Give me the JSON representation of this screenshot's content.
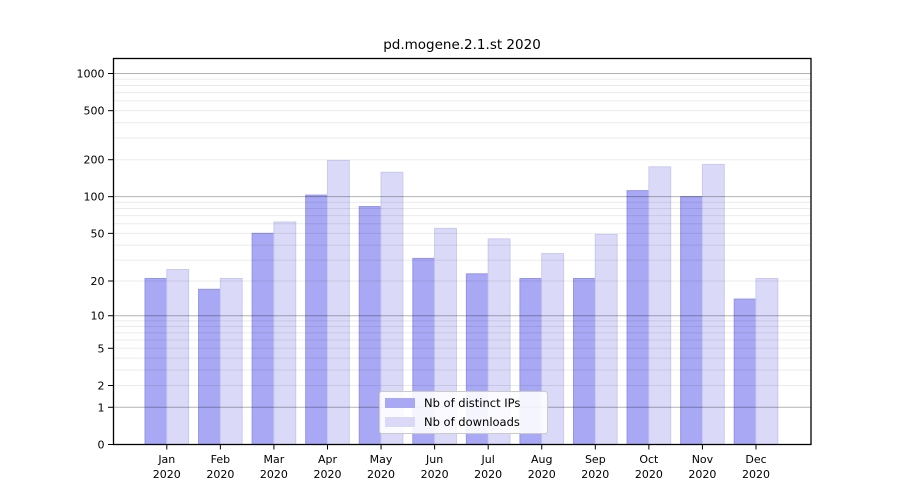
{
  "chart_data": {
    "type": "bar",
    "title": "pd.mogene.2.1.st 2020",
    "categories": [
      "Jan",
      "Feb",
      "Mar",
      "Apr",
      "May",
      "Jun",
      "Jul",
      "Aug",
      "Sep",
      "Oct",
      "Nov",
      "Dec"
    ],
    "category_year": "2020",
    "xlabel": "",
    "ylabel": "",
    "y_scale": "log10(value+1)",
    "ylim": [
      0,
      1320
    ],
    "yticks": [
      0,
      1,
      2,
      5,
      10,
      20,
      50,
      100,
      200,
      500,
      1000
    ],
    "grid": {
      "major": [
        1,
        10,
        100,
        1000
      ],
      "minor": [
        2,
        3,
        4,
        5,
        6,
        7,
        8,
        9,
        20,
        30,
        40,
        50,
        60,
        70,
        80,
        90,
        200,
        300,
        400,
        500,
        600,
        700,
        800,
        900
      ]
    },
    "legend_position": "bottom-center",
    "series": [
      {
        "name": "Nb of distinct IPs",
        "color": "#a8a8f4",
        "edge_color": "#9494ea",
        "values": [
          21,
          17,
          50,
          103,
          83,
          31,
          23,
          21,
          21,
          112,
          100,
          14
        ]
      },
      {
        "name": "Nb of downloads",
        "color": "#dadaf8",
        "edge_color": "#c9c9f1",
        "values": [
          25,
          21,
          62,
          197,
          158,
          55,
          45,
          34,
          49,
          175,
          183,
          21
        ]
      }
    ]
  }
}
